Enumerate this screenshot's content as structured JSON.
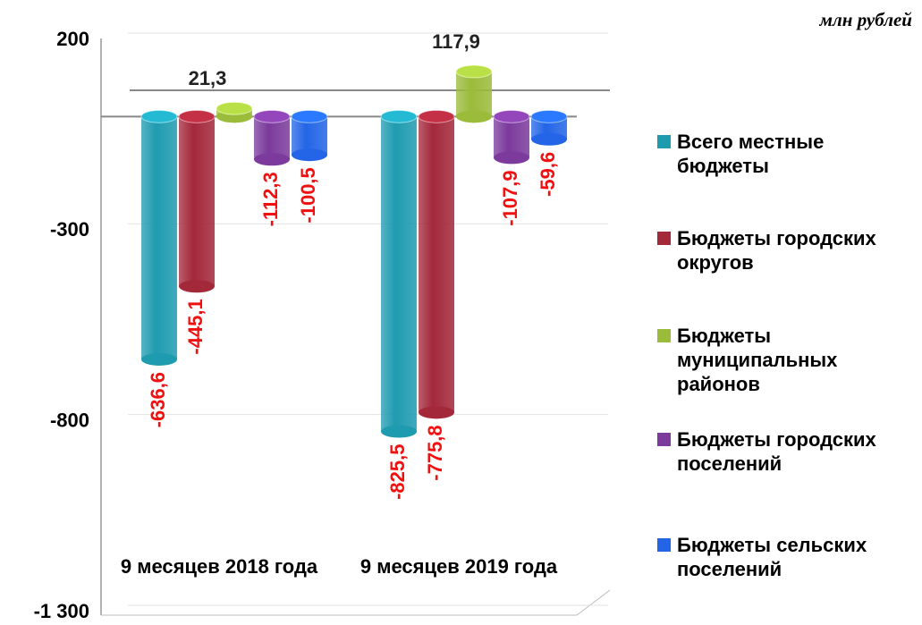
{
  "chart_data": {
    "type": "bar",
    "unit_label": "млн рублей",
    "categories": [
      "9 месяцев 2018 года",
      "9 месяцев 2019 года"
    ],
    "series": [
      {
        "name": "Всего местные бюджеты",
        "color": "#1f9bb0",
        "values": [
          -636.6,
          -825.5
        ],
        "value_labels": [
          "-636,6",
          "-825,5"
        ]
      },
      {
        "name": "Бюджеты городских округов",
        "color": "#a3283a",
        "values": [
          -445.1,
          -775.8
        ],
        "value_labels": [
          "-445,1",
          "-775,8"
        ]
      },
      {
        "name": "Бюджеты муниципальных районов",
        "color": "#9bbb3b",
        "values": [
          21.3,
          117.9
        ],
        "value_labels": [
          "21,3",
          "117,9"
        ]
      },
      {
        "name": "Бюджеты городских поселений",
        "color": "#7b3a9c",
        "values": [
          -112.3,
          -107.9
        ],
        "value_labels": [
          "-112,3",
          "-107,9"
        ]
      },
      {
        "name": "Бюджеты сельских поселений",
        "color": "#2365e6",
        "values": [
          -100.5,
          -59.6
        ],
        "value_labels": [
          "-100,5",
          "-59,6"
        ]
      }
    ],
    "ylim": [
      -1300,
      200
    ],
    "yticks": [
      200,
      -300,
      -800,
      {
        "value": -1300,
        "label": "-1 300"
      }
    ],
    "grid": true
  }
}
